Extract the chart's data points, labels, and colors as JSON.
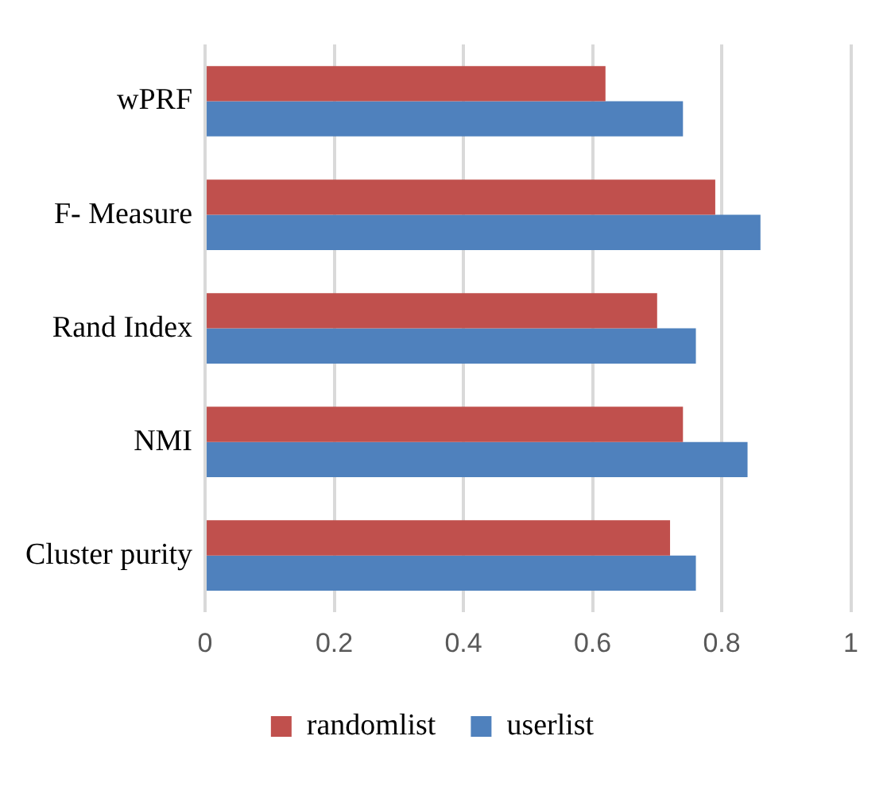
{
  "chart_data": {
    "type": "bar",
    "orientation": "horizontal",
    "categories": [
      "wPRF",
      "F- Measure",
      "Rand Index",
      "NMI",
      "Cluster purity"
    ],
    "series": [
      {
        "name": "randomlist",
        "color": "#c0504d",
        "values": [
          0.62,
          0.79,
          0.7,
          0.74,
          0.72
        ]
      },
      {
        "name": "userlist",
        "color": "#4f81bd",
        "values": [
          0.74,
          0.86,
          0.76,
          0.84,
          0.76
        ]
      }
    ],
    "xlim": [
      0,
      1
    ],
    "xticks": [
      0,
      0.2,
      0.4,
      0.6,
      0.8,
      1
    ],
    "grid": "x",
    "legend": "bottom"
  }
}
